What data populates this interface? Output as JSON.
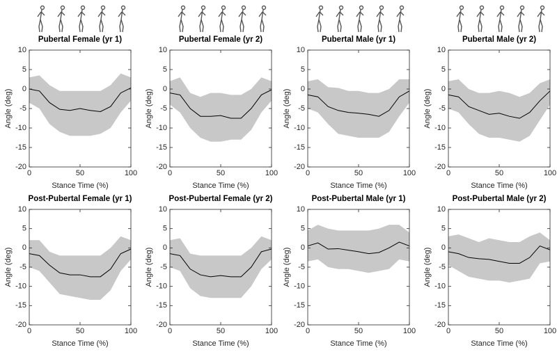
{
  "chart_data": [
    {
      "type": "line",
      "title": "Pubertal Female (yr 1)",
      "xlabel": "Stance Time (%)",
      "ylabel": "Angle (deg)",
      "x": [
        0,
        10,
        20,
        30,
        40,
        50,
        60,
        70,
        80,
        90,
        100
      ],
      "series": [
        {
          "color": "#000000",
          "values": [
            0,
            -0.5,
            -3.5,
            -5.2,
            -5.5,
            -5,
            -5.5,
            -5.8,
            -4.5,
            -1,
            0.3
          ]
        }
      ],
      "band": {
        "color": "#c8c8c8",
        "upper": [
          3,
          3.5,
          1,
          -0.5,
          -0.5,
          -0.5,
          -0.5,
          -0.5,
          1,
          4,
          3
        ],
        "lower": [
          -3.5,
          -5,
          -9,
          -11,
          -12,
          -12,
          -12,
          -11.5,
          -10,
          -6,
          -3
        ]
      },
      "xlim": [
        0,
        100
      ],
      "ylim": [
        -20,
        10
      ],
      "xticks": [
        0,
        50,
        100
      ],
      "yticks": [
        -20,
        -15,
        -10,
        -5,
        0,
        5,
        10
      ]
    },
    {
      "type": "line",
      "title": "Pubertal Female (yr 2)",
      "xlabel": "Stance Time (%)",
      "ylabel": "Angle (deg)",
      "x": [
        0,
        10,
        20,
        30,
        40,
        50,
        60,
        70,
        80,
        90,
        100
      ],
      "series": [
        {
          "color": "#000000",
          "values": [
            -1,
            -1.5,
            -5,
            -7,
            -7,
            -6.8,
            -7.5,
            -7.5,
            -5,
            -1.5,
            -0.2
          ]
        }
      ],
      "band": {
        "color": "#c8c8c8",
        "upper": [
          2,
          3,
          -1,
          -2,
          -1,
          -1,
          -1.5,
          -1.5,
          0,
          3,
          2
        ],
        "lower": [
          -4,
          -6,
          -10,
          -12.5,
          -13.5,
          -13.5,
          -13,
          -13,
          -10.5,
          -6,
          -3
        ]
      },
      "xlim": [
        0,
        100
      ],
      "ylim": [
        -20,
        10
      ],
      "xticks": [
        0,
        50,
        100
      ],
      "yticks": [
        -20,
        -15,
        -10,
        -5,
        0,
        5,
        10
      ]
    },
    {
      "type": "line",
      "title": "Pubertal Male (yr 1)",
      "xlabel": "Stance Time (%)",
      "ylabel": "Angle (deg)",
      "x": [
        0,
        10,
        20,
        30,
        40,
        50,
        60,
        70,
        80,
        90,
        100
      ],
      "series": [
        {
          "color": "#000000",
          "values": [
            -1.5,
            -2,
            -4.5,
            -5.5,
            -6,
            -6.2,
            -6.5,
            -7,
            -5.5,
            -2,
            -0.5
          ]
        }
      ],
      "band": {
        "color": "#c8c8c8",
        "upper": [
          2,
          2.5,
          0.5,
          0.3,
          -0.5,
          -0.5,
          -1,
          -1,
          0,
          2.5,
          2.5
        ],
        "lower": [
          -5,
          -6,
          -9,
          -11.5,
          -12,
          -12.5,
          -12.5,
          -12.5,
          -11,
          -7,
          -3.5
        ]
      },
      "xlim": [
        0,
        100
      ],
      "ylim": [
        -20,
        10
      ],
      "xticks": [
        0,
        50,
        100
      ],
      "yticks": [
        -20,
        -15,
        -10,
        -5,
        0,
        5,
        10
      ]
    },
    {
      "type": "line",
      "title": "Pubertal Male (yr 2)",
      "xlabel": "Stance Time (%)",
      "ylabel": "Angle (deg)",
      "x": [
        0,
        10,
        20,
        30,
        40,
        50,
        60,
        70,
        80,
        90,
        100
      ],
      "series": [
        {
          "color": "#000000",
          "values": [
            -1.5,
            -2,
            -4.5,
            -5.5,
            -6.5,
            -6.2,
            -7,
            -7.5,
            -6,
            -3,
            -0.5
          ]
        }
      ],
      "band": {
        "color": "#c8c8c8",
        "upper": [
          2,
          2.5,
          0,
          -1,
          -1,
          -0.5,
          -1,
          -2,
          -1,
          1.5,
          2.5
        ],
        "lower": [
          -5,
          -6,
          -9,
          -11.5,
          -12.5,
          -12.5,
          -13,
          -13.5,
          -12,
          -8,
          -4
        ]
      },
      "xlim": [
        0,
        100
      ],
      "ylim": [
        -20,
        10
      ],
      "xticks": [
        0,
        50,
        100
      ],
      "yticks": [
        -20,
        -15,
        -10,
        -5,
        0,
        5,
        10
      ]
    },
    {
      "type": "line",
      "title": "Post-Pubertal Female (yr 1)",
      "xlabel": "Stance Time (%)",
      "ylabel": "Angle (deg)",
      "x": [
        0,
        10,
        20,
        30,
        40,
        50,
        60,
        70,
        80,
        90,
        100
      ],
      "series": [
        {
          "color": "#000000",
          "values": [
            -1.5,
            -2,
            -4.5,
            -6.5,
            -7,
            -7,
            -7.5,
            -7.5,
            -5.5,
            -1.5,
            -0.3
          ]
        }
      ],
      "band": {
        "color": "#c8c8c8",
        "upper": [
          2,
          2,
          -1,
          -2,
          -2,
          -2,
          -2,
          -2,
          0,
          3,
          2
        ],
        "lower": [
          -5,
          -6,
          -9,
          -12,
          -12.5,
          -13,
          -13.5,
          -13.5,
          -11,
          -6,
          -3
        ]
      },
      "xlim": [
        0,
        100
      ],
      "ylim": [
        -20,
        10
      ],
      "xticks": [
        0,
        50,
        100
      ],
      "yticks": [
        -20,
        -15,
        -10,
        -5,
        0,
        5,
        10
      ]
    },
    {
      "type": "line",
      "title": "Post-Pubertal Female (yr 2)",
      "xlabel": "Stance Time (%)",
      "ylabel": "Angle (deg)",
      "x": [
        0,
        10,
        20,
        30,
        40,
        50,
        60,
        70,
        80,
        90,
        100
      ],
      "series": [
        {
          "color": "#000000",
          "values": [
            -1.5,
            -2,
            -5.5,
            -7,
            -7.5,
            -7.2,
            -7.5,
            -7.5,
            -5,
            -1,
            -0.3
          ]
        }
      ],
      "band": {
        "color": "#c8c8c8",
        "upper": [
          2,
          2.5,
          -1.5,
          -2,
          -2,
          -2,
          -2,
          -2,
          0,
          3,
          2
        ],
        "lower": [
          -5,
          -6,
          -10.5,
          -12.5,
          -13,
          -13,
          -13,
          -13,
          -10,
          -5.5,
          -3
        ]
      },
      "xlim": [
        0,
        100
      ],
      "ylim": [
        -20,
        10
      ],
      "xticks": [
        0,
        50,
        100
      ],
      "yticks": [
        -20,
        -15,
        -10,
        -5,
        0,
        5,
        10
      ]
    },
    {
      "type": "line",
      "title": "Post-Pubertal Male (yr 1)",
      "xlabel": "Stance Time (%)",
      "ylabel": "Angle (deg)",
      "x": [
        0,
        10,
        20,
        30,
        40,
        50,
        60,
        70,
        80,
        90,
        100
      ],
      "series": [
        {
          "color": "#000000",
          "values": [
            0.5,
            1.3,
            -0.3,
            -0.2,
            -0.6,
            -1,
            -1.5,
            -1.2,
            0,
            1.5,
            0.5
          ]
        }
      ],
      "band": {
        "color": "#c8c8c8",
        "upper": [
          4.5,
          6,
          5,
          4.5,
          4.5,
          4.5,
          4.5,
          5,
          6,
          6,
          4
        ],
        "lower": [
          -3.5,
          -3,
          -5,
          -5.5,
          -5.5,
          -6,
          -6.5,
          -6,
          -5.5,
          -3,
          -3.5
        ]
      },
      "xlim": [
        0,
        100
      ],
      "ylim": [
        -20,
        10
      ],
      "xticks": [
        0,
        50,
        100
      ],
      "yticks": [
        -20,
        -15,
        -10,
        -5,
        0,
        5,
        10
      ]
    },
    {
      "type": "line",
      "title": "Post-Pubertal Male (yr 2)",
      "xlabel": "Stance Time (%)",
      "ylabel": "Angle (deg)",
      "x": [
        0,
        10,
        20,
        30,
        40,
        50,
        60,
        70,
        80,
        90,
        100
      ],
      "series": [
        {
          "color": "#000000",
          "values": [
            -1,
            -1.5,
            -2.5,
            -2.8,
            -3,
            -3.5,
            -4,
            -4,
            -2.5,
            0.5,
            -0.5
          ]
        }
      ],
      "band": {
        "color": "#c8c8c8",
        "upper": [
          3,
          3.5,
          2.5,
          1.5,
          2.5,
          2,
          1.5,
          1.5,
          3,
          4,
          2
        ],
        "lower": [
          -4.5,
          -6,
          -7.5,
          -8,
          -8.5,
          -8.5,
          -9,
          -8.5,
          -8,
          -4,
          -3.5
        ]
      },
      "xlim": [
        0,
        100
      ],
      "ylim": [
        -20,
        10
      ],
      "xticks": [
        0,
        50,
        100
      ],
      "yticks": [
        -20,
        -15,
        -10,
        -5,
        0,
        5,
        10
      ]
    }
  ]
}
